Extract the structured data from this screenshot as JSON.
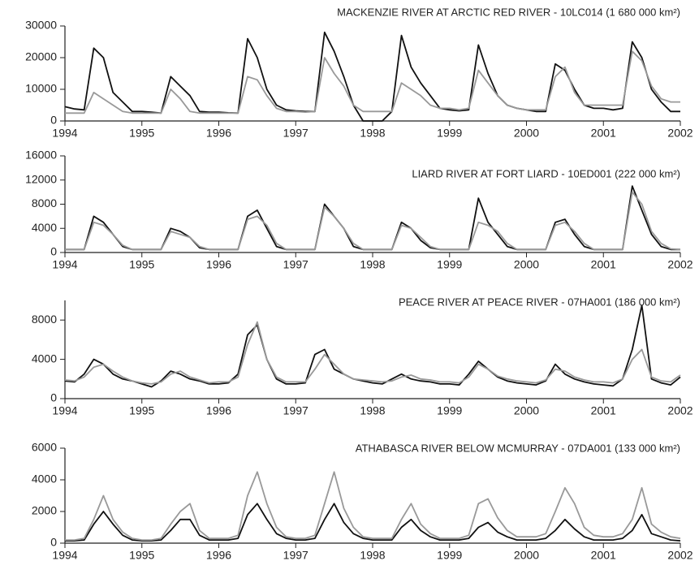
{
  "chart_data": [
    {
      "type": "line",
      "title": "MACKENZIE RIVER AT ARCTIC RED RIVER - 10LC014 (1 680 000 km²)",
      "x": [
        1994,
        1994.125,
        1994.25,
        1994.375,
        1994.5,
        1994.625,
        1994.75,
        1994.875,
        1995,
        1995.125,
        1995.25,
        1995.375,
        1995.5,
        1995.625,
        1995.75,
        1995.875,
        1996,
        1996.125,
        1996.25,
        1996.375,
        1996.5,
        1996.625,
        1996.75,
        1996.875,
        1997,
        1997.125,
        1997.25,
        1997.375,
        1997.5,
        1997.625,
        1997.75,
        1997.875,
        1998,
        1998.125,
        1998.25,
        1998.375,
        1998.5,
        1998.625,
        1998.75,
        1998.875,
        1999,
        1999.125,
        1999.25,
        1999.375,
        1999.5,
        1999.625,
        1999.75,
        1999.875,
        2000,
        2000.125,
        2000.25,
        2000.375,
        2000.5,
        2000.625,
        2000.75,
        2000.875,
        2001,
        2001.125,
        2001.25,
        2001.375,
        2001.5,
        2001.625,
        2001.75,
        2001.875,
        2002
      ],
      "series": [
        {
          "color": "#111111",
          "values": [
            4500,
            3800,
            3500,
            23000,
            20000,
            9000,
            6000,
            3000,
            3000,
            2800,
            2500,
            14000,
            11000,
            8000,
            3000,
            2800,
            2800,
            2600,
            2500,
            26000,
            20000,
            10000,
            5000,
            3500,
            3200,
            3000,
            3000,
            28000,
            22000,
            14000,
            5000,
            0,
            0,
            0,
            3000,
            27000,
            17000,
            12000,
            8000,
            4000,
            3500,
            3200,
            3500,
            24000,
            15000,
            8000,
            5000,
            4000,
            3500,
            3000,
            3000,
            18000,
            16000,
            10000,
            5000,
            4000,
            4000,
            3500,
            4000,
            25000,
            20000,
            10000,
            6000,
            3000,
            3000
          ]
        },
        {
          "color": "#999999",
          "values": [
            2500,
            2500,
            2500,
            9000,
            7000,
            5000,
            3000,
            2500,
            2500,
            2500,
            2500,
            10000,
            7000,
            3000,
            2500,
            2500,
            2500,
            2500,
            2500,
            14000,
            13000,
            8000,
            4000,
            3000,
            3000,
            2800,
            3000,
            20000,
            15000,
            11000,
            5000,
            3000,
            3000,
            3000,
            3000,
            12000,
            10000,
            8000,
            5000,
            4000,
            4000,
            3500,
            4000,
            16000,
            12000,
            8000,
            5000,
            4000,
            3500,
            3500,
            3500,
            14000,
            17000,
            9000,
            5000,
            5000,
            5000,
            5000,
            5000,
            22000,
            19000,
            11000,
            7000,
            6000,
            6000
          ]
        }
      ],
      "xlim": [
        1994,
        2002
      ],
      "xticks": [
        1994,
        1995,
        1996,
        1997,
        1998,
        1999,
        2000,
        2001,
        2002
      ],
      "ylim": [
        0,
        30000
      ],
      "yticks": [
        0,
        10000,
        20000,
        30000
      ]
    },
    {
      "type": "line",
      "title": "LIARD RIVER AT FORT LIARD - 10ED001 (222 000 km²)",
      "x": [
        1994,
        1994.125,
        1994.25,
        1994.375,
        1994.5,
        1994.625,
        1994.75,
        1994.875,
        1995,
        1995.125,
        1995.25,
        1995.375,
        1995.5,
        1995.625,
        1995.75,
        1995.875,
        1996,
        1996.125,
        1996.25,
        1996.375,
        1996.5,
        1996.625,
        1996.75,
        1996.875,
        1997,
        1997.125,
        1997.25,
        1997.375,
        1997.5,
        1997.625,
        1997.75,
        1997.875,
        1998,
        1998.125,
        1998.25,
        1998.375,
        1998.5,
        1998.625,
        1998.75,
        1998.875,
        1999,
        1999.125,
        1999.25,
        1999.375,
        1999.5,
        1999.625,
        1999.75,
        1999.875,
        2000,
        2000.125,
        2000.25,
        2000.375,
        2000.5,
        2000.625,
        2000.75,
        2000.875,
        2001,
        2001.125,
        2001.25,
        2001.375,
        2001.5,
        2001.625,
        2001.75,
        2001.875,
        2002
      ],
      "series": [
        {
          "color": "#111111",
          "values": [
            500,
            500,
            500,
            6000,
            5000,
            3000,
            1000,
            500,
            500,
            500,
            500,
            4000,
            3500,
            2500,
            800,
            500,
            500,
            500,
            500,
            6000,
            7000,
            4000,
            1000,
            500,
            500,
            500,
            500,
            8000,
            6000,
            4000,
            1000,
            500,
            500,
            500,
            500,
            5000,
            4000,
            2000,
            800,
            500,
            500,
            500,
            500,
            9000,
            5000,
            3000,
            1000,
            500,
            500,
            500,
            500,
            5000,
            5500,
            3000,
            1000,
            500,
            500,
            500,
            500,
            11000,
            7000,
            3000,
            1000,
            500,
            500
          ]
        },
        {
          "color": "#999999",
          "values": [
            500,
            500,
            500,
            5000,
            4500,
            3000,
            1200,
            500,
            500,
            500,
            500,
            3500,
            3000,
            2500,
            1000,
            500,
            500,
            500,
            500,
            5500,
            6000,
            4500,
            1500,
            500,
            500,
            500,
            500,
            7500,
            6000,
            4000,
            1500,
            500,
            500,
            500,
            500,
            4500,
            4000,
            2500,
            1000,
            500,
            500,
            500,
            500,
            5000,
            4500,
            3500,
            1500,
            500,
            500,
            500,
            500,
            4500,
            5000,
            3500,
            1500,
            500,
            500,
            500,
            500,
            10000,
            8000,
            3500,
            1500,
            600,
            500
          ]
        }
      ],
      "xlim": [
        1994,
        2002
      ],
      "xticks": [
        1994,
        1995,
        1996,
        1997,
        1998,
        1999,
        2000,
        2001,
        2002
      ],
      "ylim": [
        0,
        16000
      ],
      "yticks": [
        0,
        4000,
        8000,
        12000,
        16000
      ]
    },
    {
      "type": "line",
      "title": "PEACE RIVER AT PEACE RIVER - 07HA001 (186 000 km²)",
      "x": [
        1994,
        1994.125,
        1994.25,
        1994.375,
        1994.5,
        1994.625,
        1994.75,
        1994.875,
        1995,
        1995.125,
        1995.25,
        1995.375,
        1995.5,
        1995.625,
        1995.75,
        1995.875,
        1996,
        1996.125,
        1996.25,
        1996.375,
        1996.5,
        1996.625,
        1996.75,
        1996.875,
        1997,
        1997.125,
        1997.25,
        1997.375,
        1997.5,
        1997.625,
        1997.75,
        1997.875,
        1998,
        1998.125,
        1998.25,
        1998.375,
        1998.5,
        1998.625,
        1998.75,
        1998.875,
        1999,
        1999.125,
        1999.25,
        1999.375,
        1999.5,
        1999.625,
        1999.75,
        1999.875,
        2000,
        2000.125,
        2000.25,
        2000.375,
        2000.5,
        2000.625,
        2000.75,
        2000.875,
        2001,
        2001.125,
        2001.25,
        2001.375,
        2001.5,
        2001.625,
        2001.75,
        2001.875,
        2002
      ],
      "series": [
        {
          "color": "#111111",
          "values": [
            1800,
            1700,
            2500,
            4000,
            3500,
            2500,
            2000,
            1800,
            1500,
            1200,
            1800,
            2800,
            2500,
            2000,
            1800,
            1500,
            1500,
            1600,
            2500,
            6500,
            7500,
            4000,
            2000,
            1500,
            1500,
            1600,
            4500,
            5000,
            3000,
            2500,
            2000,
            1800,
            1600,
            1500,
            2000,
            2500,
            2000,
            1800,
            1700,
            1500,
            1500,
            1400,
            2500,
            3800,
            3000,
            2200,
            1800,
            1600,
            1500,
            1400,
            1800,
            3500,
            2500,
            2000,
            1700,
            1500,
            1400,
            1300,
            2000,
            5000,
            9500,
            2000,
            1600,
            1400,
            2200
          ]
        },
        {
          "color": "#999999",
          "values": [
            1900,
            1800,
            2200,
            3200,
            3500,
            2800,
            2200,
            1800,
            1600,
            1500,
            1700,
            2500,
            2800,
            2200,
            1900,
            1600,
            1700,
            1700,
            2200,
            5500,
            7800,
            4000,
            2200,
            1700,
            1700,
            1700,
            3000,
            4500,
            3500,
            2500,
            2000,
            1900,
            1800,
            1700,
            1800,
            2200,
            2400,
            2000,
            1900,
            1700,
            1700,
            1600,
            2200,
            3500,
            3000,
            2300,
            2000,
            1800,
            1700,
            1600,
            1900,
            3000,
            2800,
            2200,
            1900,
            1700,
            1700,
            1600,
            2000,
            4000,
            5000,
            2200,
            1800,
            1700,
            2400
          ]
        }
      ],
      "xlim": [
        1994,
        2002
      ],
      "xticks": [
        1994,
        1995,
        1996,
        1997,
        1998,
        1999,
        2000,
        2001,
        2002
      ],
      "ylim": [
        0,
        10000
      ],
      "yticks": [
        0,
        4000,
        8000
      ]
    },
    {
      "type": "line",
      "title": "ATHABASCA RIVER BELOW MCMURRAY - 07DA001 (133 000 km²)",
      "x": [
        1994,
        1994.125,
        1994.25,
        1994.375,
        1994.5,
        1994.625,
        1994.75,
        1994.875,
        1995,
        1995.125,
        1995.25,
        1995.375,
        1995.5,
        1995.625,
        1995.75,
        1995.875,
        1996,
        1996.125,
        1996.25,
        1996.375,
        1996.5,
        1996.625,
        1996.75,
        1996.875,
        1997,
        1997.125,
        1997.25,
        1997.375,
        1997.5,
        1997.625,
        1997.75,
        1997.875,
        1998,
        1998.125,
        1998.25,
        1998.375,
        1998.5,
        1998.625,
        1998.75,
        1998.875,
        1999,
        1999.125,
        1999.25,
        1999.375,
        1999.5,
        1999.625,
        1999.75,
        1999.875,
        2000,
        2000.125,
        2000.25,
        2000.375,
        2000.5,
        2000.625,
        2000.75,
        2000.875,
        2001,
        2001.125,
        2001.25,
        2001.375,
        2001.5,
        2001.625,
        2001.75,
        2001.875,
        2002
      ],
      "series": [
        {
          "color": "#111111",
          "values": [
            150,
            150,
            200,
            1200,
            2000,
            1200,
            500,
            200,
            150,
            150,
            200,
            800,
            1500,
            1500,
            500,
            200,
            200,
            200,
            300,
            1800,
            2500,
            1500,
            600,
            300,
            200,
            200,
            300,
            1500,
            2500,
            1300,
            600,
            300,
            200,
            200,
            200,
            1000,
            1500,
            800,
            400,
            200,
            200,
            200,
            300,
            1000,
            1300,
            700,
            400,
            200,
            200,
            200,
            300,
            800,
            1500,
            900,
            400,
            200,
            200,
            200,
            300,
            800,
            1800,
            600,
            400,
            200,
            150
          ]
        },
        {
          "color": "#999999",
          "values": [
            200,
            200,
            300,
            1500,
            3000,
            1500,
            700,
            300,
            200,
            200,
            300,
            1200,
            2000,
            2500,
            800,
            300,
            300,
            300,
            500,
            3000,
            4500,
            2500,
            1000,
            400,
            300,
            300,
            500,
            2500,
            4500,
            2200,
            1000,
            400,
            300,
            300,
            300,
            1500,
            2500,
            1200,
            600,
            300,
            300,
            300,
            500,
            2500,
            2800,
            1600,
            800,
            400,
            400,
            400,
            600,
            2000,
            3500,
            2500,
            1000,
            500,
            400,
            400,
            600,
            1500,
            3500,
            1200,
            700,
            400,
            300
          ]
        }
      ],
      "xlim": [
        1994,
        2002
      ],
      "xticks": [
        1994,
        1995,
        1996,
        1997,
        1998,
        1999,
        2000,
        2001,
        2002
      ],
      "ylim": [
        0,
        6000
      ],
      "yticks": [
        0,
        2000,
        4000,
        6000
      ]
    }
  ]
}
